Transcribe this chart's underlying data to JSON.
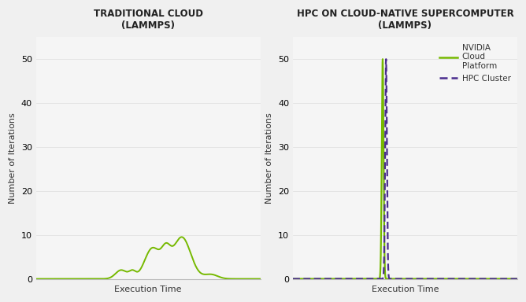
{
  "bg_color": "#f0f0f0",
  "panel_bg": "#f5f5f5",
  "title1": "TRADITIONAL CLOUD",
  "subtitle1": "(LAMMPS)",
  "title2": "HPC ON CLOUD-NATIVE SUPERCOMPUTER",
  "subtitle2": "(LAMMPS)",
  "xlabel": "Execution Time",
  "ylabel": "Number of Iterations",
  "ylim": [
    0,
    55
  ],
  "yticks": [
    0,
    10,
    20,
    30,
    40,
    50
  ],
  "line_color_green": "#76b900",
  "line_color_purple": "#4a2d8e",
  "legend_label1": "NVIDIA\nCloud\nPlatform",
  "legend_label2": "HPC Cluster",
  "title_fontsize": 8.5,
  "axis_label_fontsize": 8,
  "tick_fontsize": 8,
  "figsize": [
    6.68,
    3.84
  ],
  "dpi": 100
}
